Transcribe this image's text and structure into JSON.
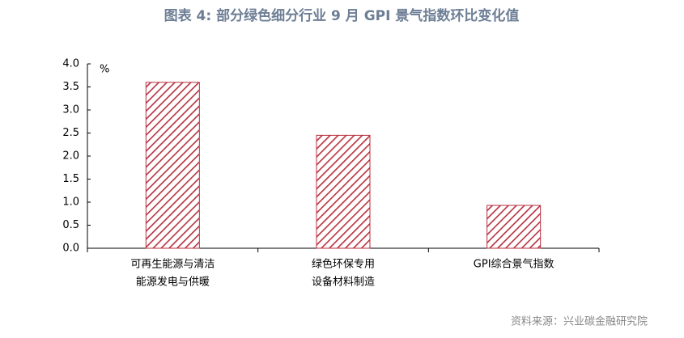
{
  "chart_data": {
    "type": "bar",
    "title": "图表 4:  部分绿色细分行业 9 月 GPI 景气指数环比变化值",
    "unit_label": "%",
    "categories": [
      [
        "可再生能源与清洁",
        "能源发电与供暖"
      ],
      [
        "绿色环保专用",
        "设备材料制造"
      ],
      [
        "GPI综合景气指数"
      ]
    ],
    "values": [
      3.6,
      2.45,
      0.93
    ],
    "color": "#b8303f",
    "ylim": [
      0,
      4
    ],
    "yticks": [
      {
        "value": 0,
        "label": "0.0"
      },
      {
        "value": 0.5,
        "label": "0.5"
      },
      {
        "value": 1,
        "label": "1.0"
      },
      {
        "value": 1.5,
        "label": "1.5"
      },
      {
        "value": 2,
        "label": "2.0"
      },
      {
        "value": 2.5,
        "label": "2.5"
      },
      {
        "value": 3,
        "label": "3.0"
      },
      {
        "value": 3.5,
        "label": "3.5"
      },
      {
        "value": 4,
        "label": "4.0"
      }
    ],
    "source": "资料来源：兴业碳金融研究院"
  }
}
